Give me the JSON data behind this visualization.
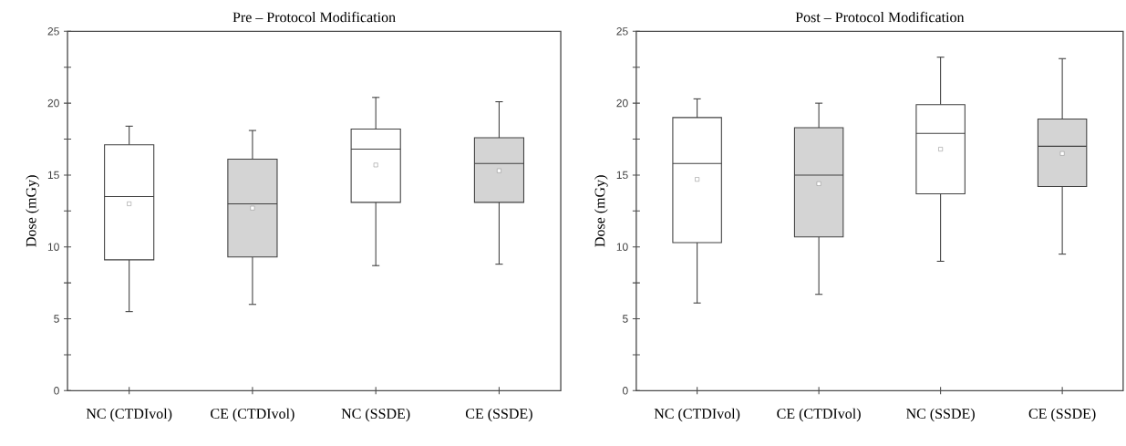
{
  "chart_data": [
    {
      "type": "box",
      "title": "Pre – Protocol Modification",
      "ylabel": "Dose (mGy)",
      "categories": [
        "NC (CTDIvol)",
        "CE (CTDIvol)",
        "NC (SSDE)",
        "CE (SSDE)"
      ],
      "colors": [
        "#ffffff",
        "#d4d4d4",
        "#ffffff",
        "#d4d4d4"
      ],
      "boxes": [
        {
          "low": 5.5,
          "q1": 9.1,
          "median": 13.5,
          "q3": 17.1,
          "high": 18.4,
          "mean": 13.0
        },
        {
          "low": 6.0,
          "q1": 9.3,
          "median": 13.0,
          "q3": 16.1,
          "high": 18.1,
          "mean": 12.7
        },
        {
          "low": 8.7,
          "q1": 13.1,
          "median": 16.8,
          "q3": 18.2,
          "high": 20.4,
          "mean": 15.7
        },
        {
          "low": 8.8,
          "q1": 13.1,
          "median": 15.8,
          "q3": 17.6,
          "high": 20.1,
          "mean": 15.3
        }
      ],
      "ylim": [
        0,
        25
      ],
      "yticks": [
        0,
        {
          "value": 2.5,
          "label": null
        },
        5,
        {
          "value": 7.5,
          "label": null
        },
        10,
        {
          "value": 12.5,
          "label": null
        },
        15,
        {
          "value": 17.5,
          "label": null
        },
        20,
        {
          "value": 22.5,
          "label": null
        },
        25
      ],
      "marker": "square"
    },
    {
      "type": "box",
      "title": "Post – Protocol Modification",
      "ylabel": "Dose (mGy)",
      "categories": [
        "NC (CTDIvol)",
        "CE (CTDIvol)",
        "NC (SSDE)",
        "CE (SSDE)"
      ],
      "colors": [
        "#ffffff",
        "#d4d4d4",
        "#ffffff",
        "#d4d4d4"
      ],
      "boxes": [
        {
          "low": 6.1,
          "q1": 10.3,
          "median": 15.8,
          "q3": 19.0,
          "high": 20.3,
          "mean": 14.7
        },
        {
          "low": 6.7,
          "q1": 10.7,
          "median": 15.0,
          "q3": 18.3,
          "high": 20.0,
          "mean": 14.4
        },
        {
          "low": 9.0,
          "q1": 13.7,
          "median": 17.9,
          "q3": 19.9,
          "high": 23.2,
          "mean": 16.8
        },
        {
          "low": 9.5,
          "q1": 14.2,
          "median": 17.0,
          "q3": 18.9,
          "high": 23.1,
          "mean": 16.5
        }
      ],
      "ylim": [
        0,
        25
      ],
      "yticks": [
        0,
        {
          "value": 2.5,
          "label": null
        },
        5,
        {
          "value": 7.5,
          "label": null
        },
        10,
        {
          "value": 12.5,
          "label": null
        },
        15,
        {
          "value": 17.5,
          "label": null
        },
        20,
        {
          "value": 22.5,
          "label": null
        },
        25
      ],
      "marker": "square"
    }
  ]
}
